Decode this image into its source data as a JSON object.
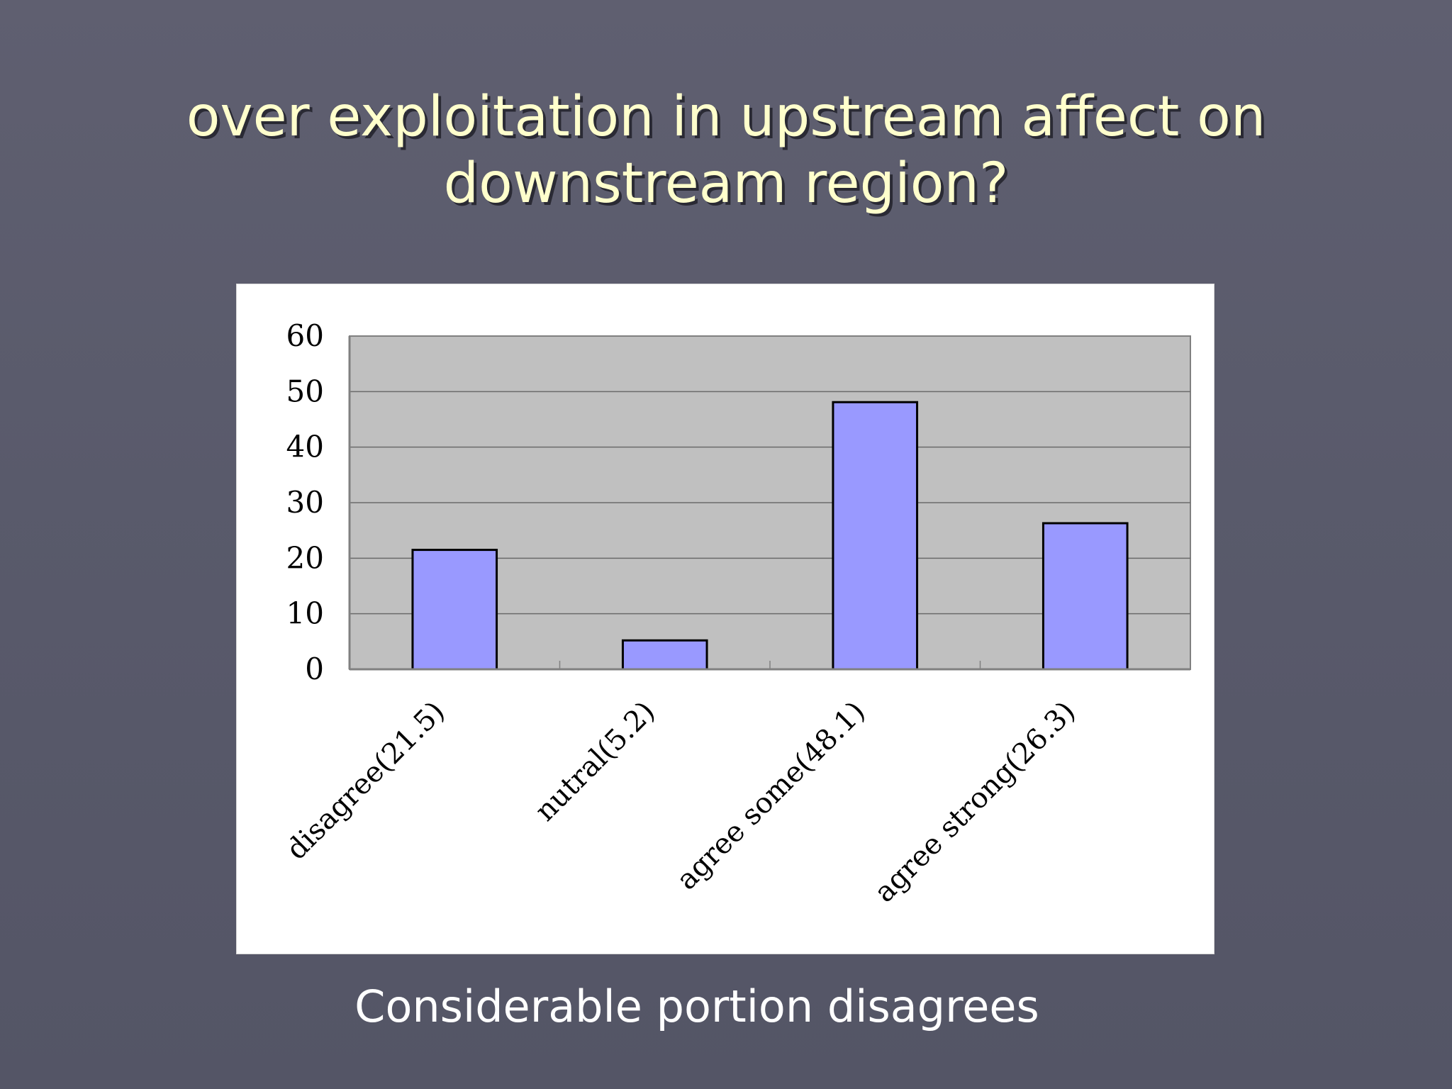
{
  "slide": {
    "title": "over exploitation in upstream affect on downstream region?",
    "caption": "Considerable portion disagrees"
  },
  "colors": {
    "background": "#5a5b6c",
    "title_text": "#ffffcc",
    "bar_fill": "#9999ff",
    "plot_area": "#c0c0c0"
  },
  "chart_data": {
    "type": "bar",
    "title": "",
    "xlabel": "",
    "ylabel": "",
    "categories": [
      "disagree(21.5)",
      "nutral(5.2)",
      "agree some(48.1)",
      "agree strong(26.3)"
    ],
    "values": [
      21.5,
      5.2,
      48.1,
      26.3
    ],
    "ylim": [
      0,
      60
    ],
    "yticks": [
      0,
      10,
      20,
      30,
      40,
      50,
      60
    ],
    "grid": true,
    "legend": "none"
  }
}
